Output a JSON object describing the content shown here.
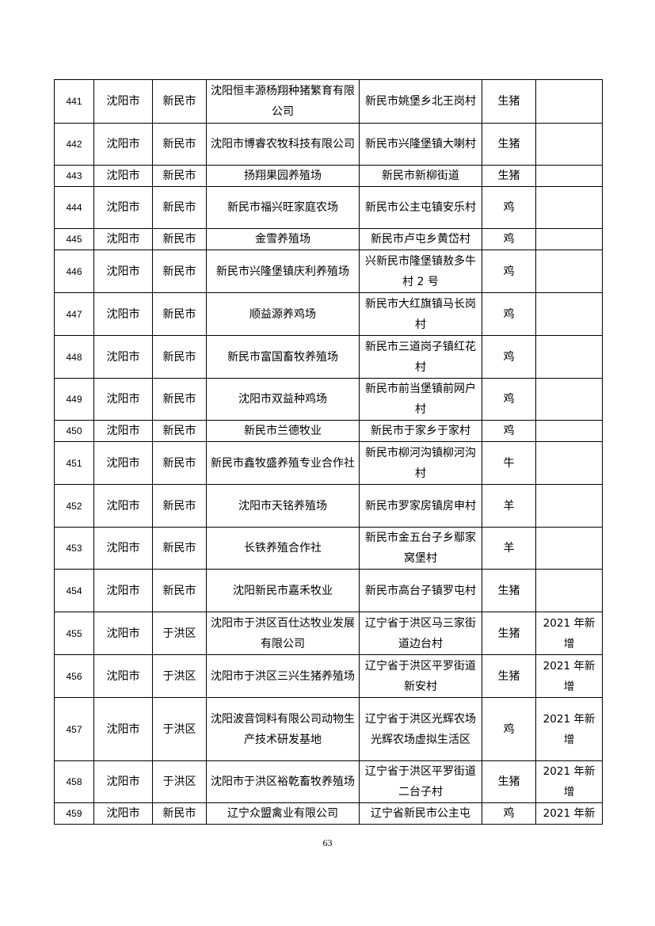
{
  "rows": [
    {
      "no": "441",
      "city": "沈阳市",
      "district": "新民市",
      "name": "沈阳恒丰源杨翔种猪繁育有限公司",
      "address": "新民市姚堡乡北王岗村",
      "type": "生猪",
      "note": ""
    },
    {
      "no": "442",
      "city": "沈阳市",
      "district": "新民市",
      "name": "沈阳市博睿农牧科技有限公司",
      "address": "新民市兴隆堡镇大喇村",
      "type": "生猪",
      "note": ""
    },
    {
      "no": "443",
      "city": "沈阳市",
      "district": "新民市",
      "name": "扬翔果园养殖场",
      "address": "新民市新柳街道",
      "type": "生猪",
      "note": ""
    },
    {
      "no": "444",
      "city": "沈阳市",
      "district": "新民市",
      "name": "新民市福兴旺家庭农场",
      "address": "新民市公主屯镇安乐村",
      "type": "鸡",
      "note": ""
    },
    {
      "no": "445",
      "city": "沈阳市",
      "district": "新民市",
      "name": "金雪养殖场",
      "address": "新民市卢屯乡黄岱村",
      "type": "鸡",
      "note": ""
    },
    {
      "no": "446",
      "city": "沈阳市",
      "district": "新民市",
      "name": "新民市兴隆堡镇庆利养殖场",
      "address": "兴新民市隆堡镇敖多牛村 2 号",
      "type": "鸡",
      "note": ""
    },
    {
      "no": "447",
      "city": "沈阳市",
      "district": "新民市",
      "name": "顺益源养鸡场",
      "address": "新民市大红旗镇马长岗村",
      "type": "鸡",
      "note": ""
    },
    {
      "no": "448",
      "city": "沈阳市",
      "district": "新民市",
      "name": "新民市富国畜牧养殖场",
      "address": "新民市三道岗子镇红花村",
      "type": "鸡",
      "note": ""
    },
    {
      "no": "449",
      "city": "沈阳市",
      "district": "新民市",
      "name": "沈阳市双益种鸡场",
      "address": "新民市前当堡镇前网户村",
      "type": "鸡",
      "note": ""
    },
    {
      "no": "450",
      "city": "沈阳市",
      "district": "新民市",
      "name": "新民市兰德牧业",
      "address": "新民市于家乡于家村",
      "type": "鸡",
      "note": ""
    },
    {
      "no": "451",
      "city": "沈阳市",
      "district": "新民市",
      "name": "新民市鑫牧盛养殖专业合作社",
      "address": "新民市柳河沟镇柳河沟村",
      "type": "牛",
      "note": ""
    },
    {
      "no": "452",
      "city": "沈阳市",
      "district": "新民市",
      "name": "沈阳市天铭养殖场",
      "address": "新民市罗家房镇房申村",
      "type": "羊",
      "note": ""
    },
    {
      "no": "453",
      "city": "沈阳市",
      "district": "新民市",
      "name": "长铁养殖合作社",
      "address": "新民市金五台子乡鄢家窝堡村",
      "type": "羊",
      "note": ""
    },
    {
      "no": "454",
      "city": "沈阳市",
      "district": "新民市",
      "name": "沈阳新民市嘉禾牧业",
      "address": "新民市高台子镇罗屯村",
      "type": "生猪",
      "note": ""
    },
    {
      "no": "455",
      "city": "沈阳市",
      "district": "于洪区",
      "name": "沈阳市于洪区百仕达牧业发展有限公司",
      "address": "辽宁省于洪区马三家街道边台村",
      "type": "生猪",
      "note": "2021 年新增"
    },
    {
      "no": "456",
      "city": "沈阳市",
      "district": "于洪区",
      "name": "沈阳市于洪区三兴生猪养殖场",
      "address": "辽宁省于洪区平罗街道新安村",
      "type": "生猪",
      "note": "2021 年新增"
    },
    {
      "no": "457",
      "city": "沈阳市",
      "district": "于洪区",
      "name": "沈阳波音饲料有限公司动物生产技术研发基地",
      "address": "辽宁省于洪区光辉农场光辉农场虚拟生活区",
      "type": "鸡",
      "note": "2021 年新增"
    },
    {
      "no": "458",
      "city": "沈阳市",
      "district": "于洪区",
      "name": "沈阳市于洪区裕乾畜牧养殖场",
      "address": "辽宁省于洪区平罗街道二台子村",
      "type": "生猪",
      "note": "2021 年新增"
    },
    {
      "no": "459",
      "city": "沈阳市",
      "district": "新民市",
      "name": "辽宁众盟禽业有限公司",
      "address": "辽宁省新民市公主屯",
      "type": "鸡",
      "note": "2021 年新"
    }
  ],
  "page_number": "63"
}
